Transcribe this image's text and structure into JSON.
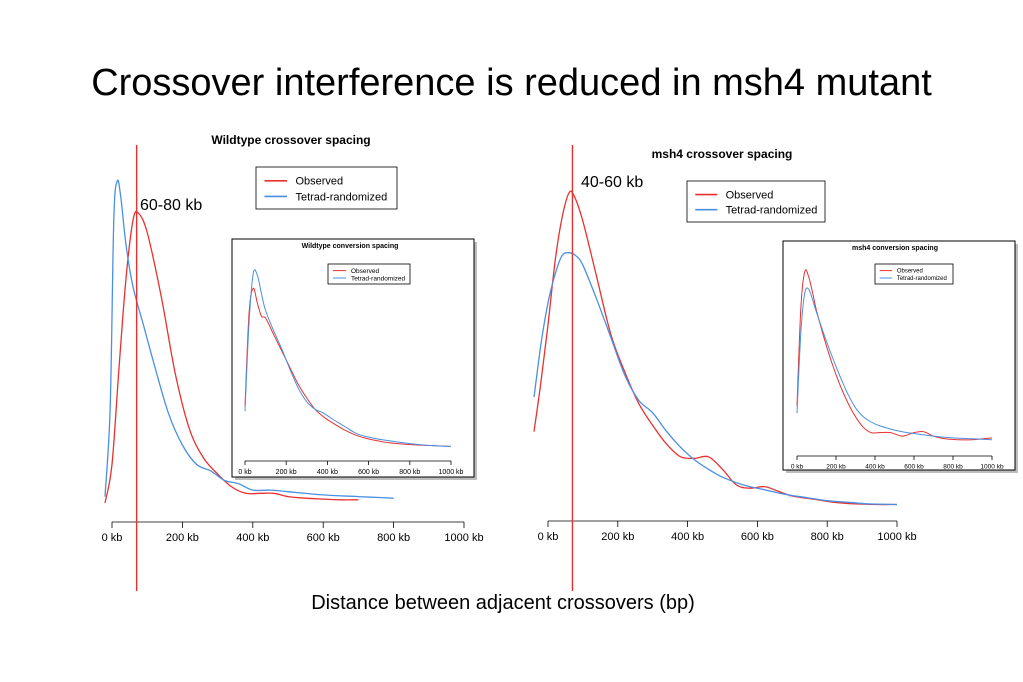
{
  "slide": {
    "title": "Crossover interference is reduced in msh4 mutant",
    "xlabel": "Distance between adjacent crossovers (bp)"
  },
  "colors": {
    "observed": "#e8312f",
    "tetrad": "#4a90e2",
    "marker": "#e8312f"
  },
  "chart_data": [
    {
      "id": "wt_main",
      "type": "line",
      "title": "Wildtype crossover spacing",
      "xlim": [
        0,
        1000
      ],
      "xticks": [
        "0 kb",
        "200 kb",
        "400 kb",
        "600 kb",
        "800 kb",
        "1000 kb"
      ],
      "legend": "top-center",
      "marker_x": 70,
      "annotation": "60-80 kb",
      "series": [
        {
          "name": "Observed",
          "color": "#e8312f",
          "x": [
            -20,
            0,
            20,
            40,
            60,
            75,
            100,
            140,
            180,
            220,
            260,
            300,
            340,
            380,
            420,
            460,
            500,
            550,
            600,
            650,
            700
          ],
          "y": [
            0.0,
            0.12,
            0.42,
            0.7,
            0.88,
            0.9,
            0.84,
            0.64,
            0.4,
            0.23,
            0.14,
            0.09,
            0.05,
            0.03,
            0.03,
            0.03,
            0.02,
            0.015,
            0.012,
            0.01,
            0.01
          ]
        },
        {
          "name": "Tetrad-randomized",
          "color": "#4a90e2",
          "x": [
            -20,
            -5,
            5,
            15,
            25,
            40,
            60,
            90,
            120,
            160,
            200,
            240,
            280,
            320,
            360,
            400,
            450,
            500,
            600,
            700,
            800
          ],
          "y": [
            0.02,
            0.3,
            0.88,
            1.0,
            0.95,
            0.8,
            0.67,
            0.55,
            0.43,
            0.28,
            0.18,
            0.12,
            0.1,
            0.07,
            0.06,
            0.04,
            0.04,
            0.035,
            0.025,
            0.02,
            0.015
          ]
        }
      ]
    },
    {
      "id": "msh4_main",
      "type": "line",
      "title": "msh4 crossover spacing",
      "xlim": [
        0,
        1000
      ],
      "xticks": [
        "0 kb",
        "200 kb",
        "400 kb",
        "600 kb",
        "800 kb",
        "1000 kb"
      ],
      "legend": "top-center",
      "marker_x": 70,
      "annotation": "40-60 kb",
      "series": [
        {
          "name": "Observed",
          "color": "#e8312f",
          "x": [
            -40,
            -20,
            0,
            20,
            40,
            60,
            75,
            100,
            140,
            180,
            220,
            260,
            300,
            340,
            380,
            420,
            460,
            500,
            540,
            580,
            620,
            660,
            700,
            760,
            820,
            880,
            940,
            1000
          ],
          "y": [
            0.24,
            0.4,
            0.58,
            0.78,
            0.92,
            1.0,
            0.99,
            0.91,
            0.73,
            0.55,
            0.43,
            0.33,
            0.26,
            0.2,
            0.16,
            0.155,
            0.16,
            0.12,
            0.07,
            0.06,
            0.065,
            0.05,
            0.035,
            0.025,
            0.015,
            0.01,
            0.008,
            0.008
          ]
        },
        {
          "name": "Tetrad-randomized",
          "color": "#4a90e2",
          "x": [
            -40,
            -20,
            0,
            20,
            40,
            60,
            80,
            100,
            140,
            180,
            220,
            260,
            300,
            340,
            380,
            420,
            460,
            500,
            560,
            620,
            680,
            740,
            800,
            860,
            920,
            1000
          ],
          "y": [
            0.35,
            0.52,
            0.65,
            0.74,
            0.8,
            0.81,
            0.8,
            0.77,
            0.66,
            0.54,
            0.42,
            0.34,
            0.3,
            0.24,
            0.19,
            0.15,
            0.12,
            0.095,
            0.07,
            0.055,
            0.04,
            0.03,
            0.02,
            0.015,
            0.01,
            0.008
          ]
        }
      ]
    },
    {
      "id": "wt_inset",
      "type": "line",
      "title": "Wildtype conversion spacing",
      "xlim": [
        0,
        1000
      ],
      "xticks": [
        "0 kb",
        "200 kb",
        "400 kb",
        "600 kb",
        "800 kb",
        "1000 kb"
      ],
      "legend": "top-center",
      "series": [
        {
          "name": "Observed",
          "color": "#e8312f",
          "x": [
            0,
            20,
            40,
            60,
            80,
            100,
            140,
            180,
            220,
            260,
            300,
            340,
            380,
            420,
            480,
            540,
            600,
            700,
            800,
            900,
            1000
          ],
          "y": [
            0.25,
            0.75,
            0.88,
            0.8,
            0.73,
            0.72,
            0.63,
            0.54,
            0.45,
            0.36,
            0.29,
            0.23,
            0.19,
            0.16,
            0.12,
            0.09,
            0.07,
            0.05,
            0.04,
            0.035,
            0.03
          ]
        },
        {
          "name": "Tetrad-randomized",
          "color": "#4a90e2",
          "x": [
            0,
            20,
            40,
            60,
            80,
            100,
            140,
            180,
            220,
            260,
            300,
            340,
            380,
            420,
            480,
            540,
            600,
            700,
            800,
            900,
            1000
          ],
          "y": [
            0.22,
            0.7,
            0.96,
            0.95,
            0.85,
            0.76,
            0.65,
            0.55,
            0.44,
            0.34,
            0.27,
            0.23,
            0.21,
            0.18,
            0.14,
            0.1,
            0.08,
            0.06,
            0.045,
            0.035,
            0.03
          ]
        }
      ]
    },
    {
      "id": "msh4_inset",
      "type": "line",
      "title": "msh4 conversion spacing",
      "xlim": [
        0,
        1000
      ],
      "xticks": [
        "0 kb",
        "200 kb",
        "400 kb",
        "600 kb",
        "800 kb",
        "1000 kb"
      ],
      "legend": "top-center",
      "series": [
        {
          "name": "Observed",
          "color": "#e8312f",
          "x": [
            0,
            20,
            40,
            60,
            80,
            100,
            140,
            180,
            220,
            260,
            300,
            340,
            380,
            420,
            480,
            540,
            600,
            650,
            700,
            760,
            820,
            900,
            1000
          ],
          "y": [
            0.22,
            0.78,
            0.98,
            0.95,
            0.86,
            0.76,
            0.6,
            0.46,
            0.34,
            0.24,
            0.16,
            0.1,
            0.07,
            0.07,
            0.07,
            0.05,
            0.07,
            0.075,
            0.05,
            0.035,
            0.03,
            0.03,
            0.04
          ]
        },
        {
          "name": "Tetrad-randomized",
          "color": "#4a90e2",
          "x": [
            0,
            20,
            40,
            60,
            80,
            100,
            140,
            180,
            220,
            260,
            300,
            340,
            380,
            420,
            480,
            540,
            600,
            700,
            800,
            900,
            1000
          ],
          "y": [
            0.18,
            0.64,
            0.86,
            0.88,
            0.82,
            0.75,
            0.62,
            0.5,
            0.39,
            0.29,
            0.21,
            0.16,
            0.13,
            0.11,
            0.09,
            0.075,
            0.065,
            0.05,
            0.04,
            0.035,
            0.03
          ]
        }
      ]
    }
  ]
}
